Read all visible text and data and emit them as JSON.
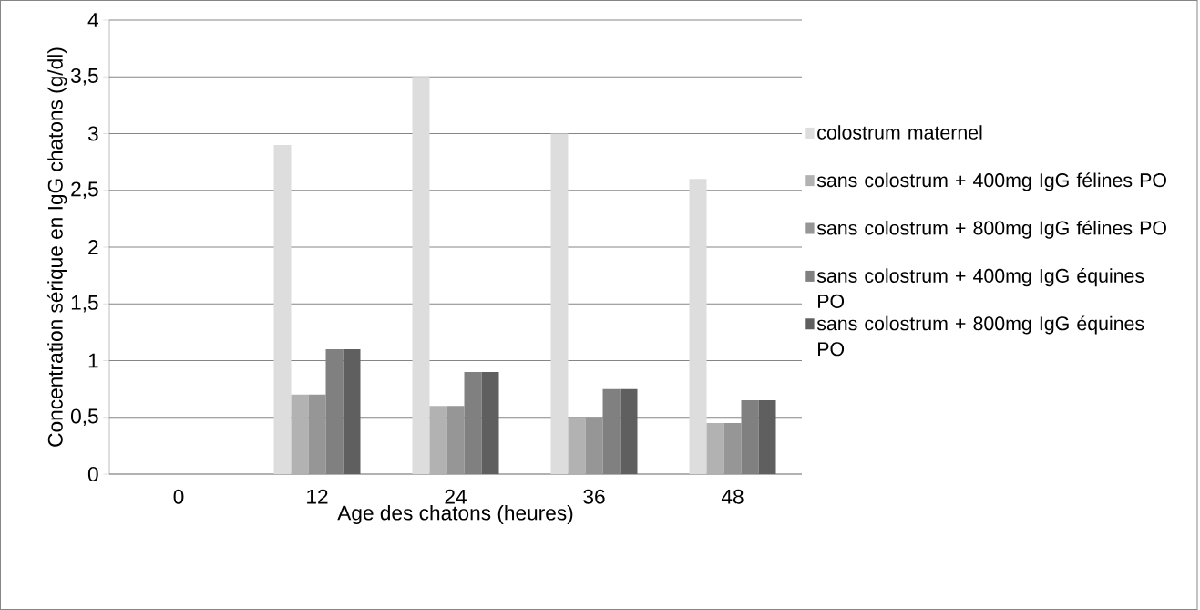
{
  "chart_data": {
    "type": "bar",
    "xlabel": "Age des chatons (heures)",
    "ylabel": "Concentration sérique en IgG chatons (g/dl)",
    "categories": [
      "0",
      "12",
      "24",
      "36",
      "48"
    ],
    "series": [
      {
        "name": "colostrum maternel",
        "color": "#dddddd",
        "values": [
          null,
          2.9,
          3.5,
          3.0,
          2.6
        ]
      },
      {
        "name": "sans colostrum + 400mg IgG félines PO",
        "color": "#b2b2b2",
        "values": [
          null,
          0.7,
          0.6,
          0.5,
          0.45
        ]
      },
      {
        "name": "sans colostrum + 800mg IgG félines PO",
        "color": "#969696",
        "values": [
          null,
          0.7,
          0.6,
          0.5,
          0.45
        ]
      },
      {
        "name": "sans colostrum + 400mg IgG équines PO",
        "color": "#808080",
        "values": [
          null,
          1.1,
          0.9,
          0.75,
          0.65
        ]
      },
      {
        "name": "sans colostrum + 800mg IgG équines PO",
        "color": "#5f5f5f",
        "values": [
          null,
          1.1,
          0.9,
          0.75,
          0.65
        ]
      }
    ],
    "ylim": [
      0,
      4
    ],
    "yticks": [
      0,
      {
        "value": 0.5,
        "label": "0,5"
      },
      1,
      {
        "value": 1.5,
        "label": "1,5"
      },
      2,
      {
        "value": 2.5,
        "label": "2,5"
      },
      3,
      {
        "value": 3.5,
        "label": "3,5"
      },
      4
    ],
    "grid": "y",
    "legend": "right"
  }
}
